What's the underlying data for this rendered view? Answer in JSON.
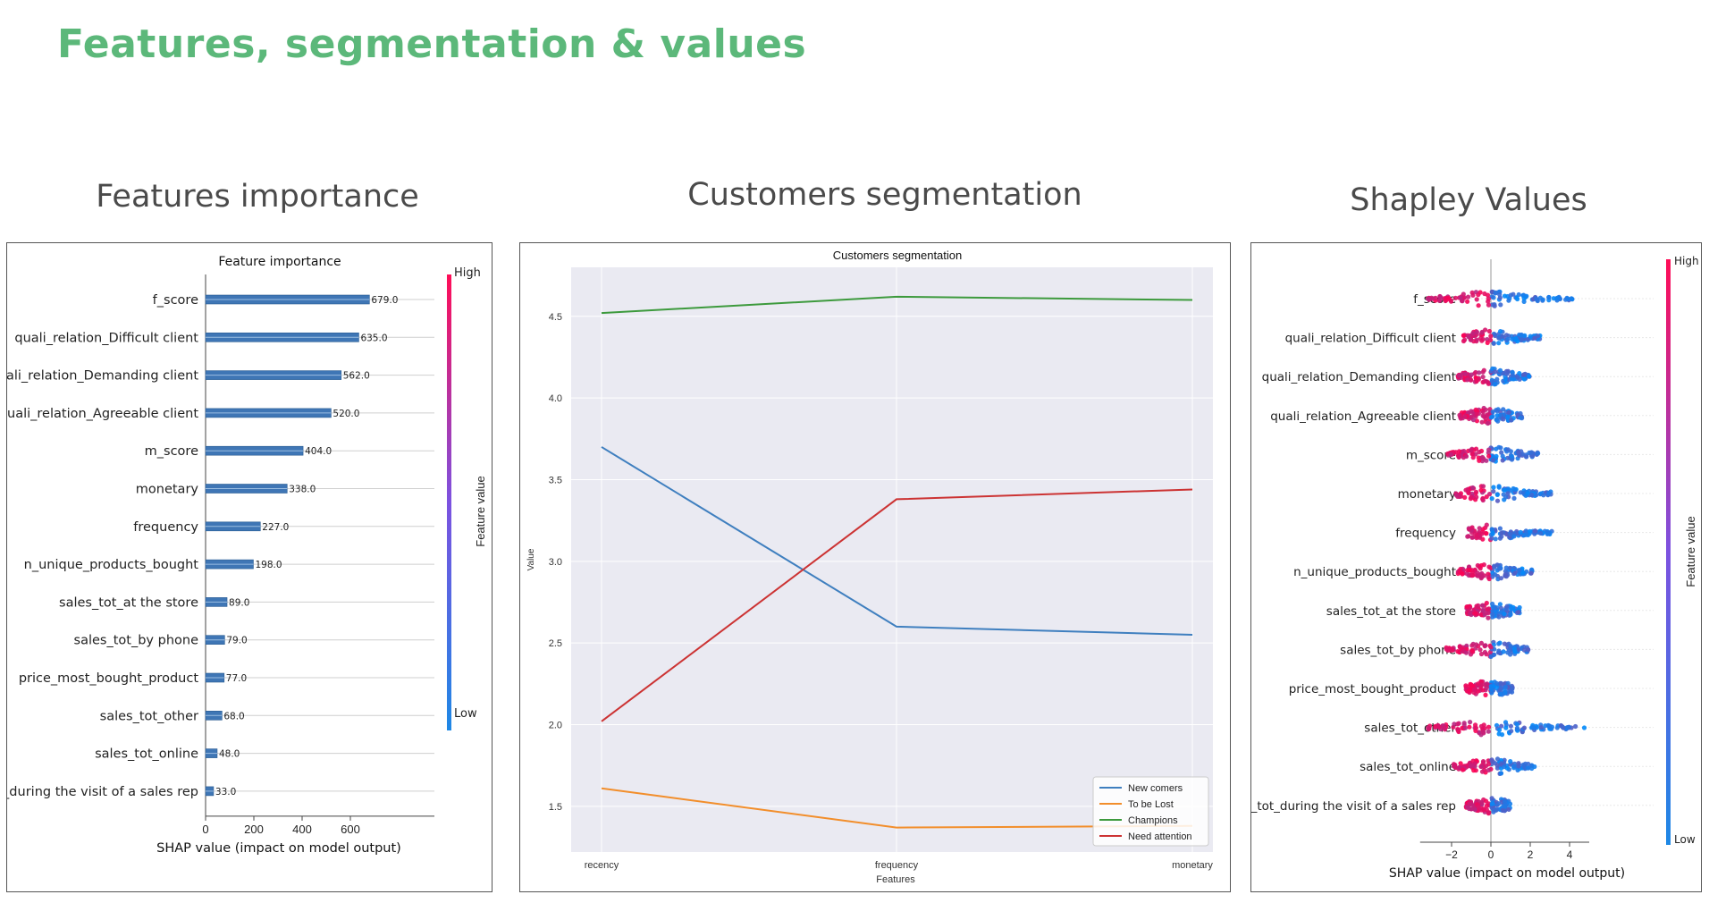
{
  "page_title": "Features, segmentation & values",
  "sections": {
    "importance": "Features importance",
    "segmentation": "Customers segmentation",
    "shapley": "Shapley Values"
  },
  "chart_data": [
    {
      "type": "bar",
      "orientation": "horizontal",
      "title": "Feature importance",
      "xlabel": "SHAP value (impact on model output)",
      "xticks": [
        0,
        200,
        400,
        600
      ],
      "xlim": [
        0,
        750
      ],
      "categories": [
        "f_score",
        "quali_relation_Difficult client",
        "quali_relation_Demanding client",
        "quali_relation_Agreeable client",
        "m_score",
        "monetary",
        "frequency",
        "n_unique_products_bought",
        "sales_tot_at the store",
        "sales_tot_by phone",
        "price_most_bought_product",
        "sales_tot_other",
        "sales_tot_online",
        "sales_tot_during the visit of a sales rep"
      ],
      "values": [
        679.0,
        635.0,
        562.0,
        520.0,
        404.0,
        338.0,
        227.0,
        198.0,
        89.0,
        79.0,
        77.0,
        68.0,
        48.0,
        33.0
      ],
      "value_labels": [
        "679.0",
        "635.0",
        "562.0",
        "520.0",
        "404.0",
        "338.0",
        "227.0",
        "198.0",
        "89.0",
        "79.0",
        "77.0",
        "68.0",
        "48.0",
        "33.0"
      ],
      "colorbar": {
        "label": "Feature value",
        "high": "High",
        "low": "Low"
      },
      "bar_color": "#3f76b5"
    },
    {
      "type": "line",
      "title": "Customers segmentation",
      "xlabel": "Features",
      "ylabel": "Value",
      "categories": [
        "recency",
        "frequency",
        "monetary"
      ],
      "yticks": [
        1.5,
        2.0,
        2.5,
        3.0,
        3.5,
        4.0,
        4.5
      ],
      "ytick_labels": [
        "1.5",
        "2.0",
        "2.5",
        "3.0",
        "3.5",
        "4.0",
        "4.5"
      ],
      "ylim": [
        1.22,
        4.8
      ],
      "legend_position": "bottom-right",
      "series": [
        {
          "name": "New comers",
          "color": "#3f7fbf",
          "values": [
            3.7,
            2.6,
            2.55
          ]
        },
        {
          "name": "To be Lost",
          "color": "#f28e2b",
          "values": [
            1.61,
            1.37,
            1.38
          ]
        },
        {
          "name": "Champions",
          "color": "#3d9a3d",
          "values": [
            4.52,
            4.62,
            4.6
          ]
        },
        {
          "name": "Need attention",
          "color": "#cc3333",
          "values": [
            2.02,
            3.38,
            3.44
          ]
        }
      ],
      "background": "#eaeaf2"
    },
    {
      "type": "scatter",
      "subtype": "shap beeswarm",
      "xlabel": "SHAP value (impact on model output)",
      "xticks": [
        -2,
        0,
        2,
        4
      ],
      "xtick_labels": [
        "−2",
        "0",
        "2",
        "4"
      ],
      "xlim": [
        -3.6,
        5.0
      ],
      "colorbar": {
        "label": "Feature value",
        "high": "High",
        "low": "Low"
      },
      "high_color": "#ff0052",
      "low_color": "#008bfb",
      "features": [
        {
          "name": "f_score",
          "min": -3.2,
          "max": 4.2
        },
        {
          "name": "quali_relation_Difficult client",
          "min": -1.4,
          "max": 2.5
        },
        {
          "name": "quali_relation_Demanding client",
          "min": -1.7,
          "max": 2.0
        },
        {
          "name": "quali_relation_Agreeable client",
          "min": -1.6,
          "max": 1.6
        },
        {
          "name": "m_score",
          "min": -2.2,
          "max": 2.4
        },
        {
          "name": "monetary",
          "min": -1.8,
          "max": 3.1
        },
        {
          "name": "frequency",
          "min": -1.2,
          "max": 3.1
        },
        {
          "name": "n_unique_products_bought",
          "min": -1.7,
          "max": 2.2
        },
        {
          "name": "sales_tot_at the store",
          "min": -1.3,
          "max": 1.5
        },
        {
          "name": "sales_tot_by phone",
          "min": -2.3,
          "max": 1.9
        },
        {
          "name": "price_most_bought_product",
          "min": -1.3,
          "max": 1.1
        },
        {
          "name": "sales_tot_other",
          "min": -3.2,
          "max": 4.8
        },
        {
          "name": "sales_tot_online",
          "min": -1.9,
          "max": 2.3
        },
        {
          "name": "sales_tot_during the visit of a sales rep",
          "min": -1.3,
          "max": 1.0
        }
      ]
    }
  ]
}
